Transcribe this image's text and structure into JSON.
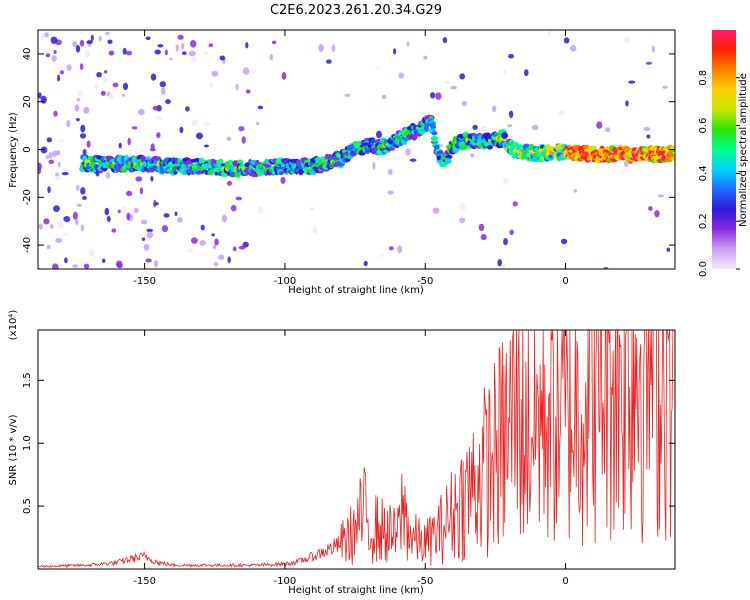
{
  "title": "C2E6.2023.261.20.34.G29",
  "chart_data": [
    {
      "type": "heatmap",
      "xlabel": "Height of straight line (km)",
      "ylabel": "Frequency (Hz)",
      "xlim": [
        -188,
        39
      ],
      "ylim": [
        -50,
        50
      ],
      "xticks": [
        -150,
        -100,
        -50,
        0
      ],
      "xtick_labels": [
        "-150",
        "-100",
        "-50",
        "0"
      ],
      "yticks": [
        -40,
        -20,
        0,
        20,
        40
      ],
      "ytick_labels": [
        "-40",
        "-20",
        "0",
        "20",
        "40"
      ],
      "colorbar": {
        "label": "Normalized spectral amplitude",
        "range": [
          0,
          1
        ],
        "ticks": [
          0.0,
          0.2,
          0.4,
          0.6,
          0.8
        ],
        "tick_labels": [
          "0.0",
          "0.2",
          "0.4",
          "0.6",
          "0.8"
        ],
        "colors": [
          "#f4e8fb",
          "#c9a0f2",
          "#8a2be2",
          "#2a1bd8",
          "#1f6cff",
          "#00d5ff",
          "#00ff8c",
          "#27e600",
          "#c7e600",
          "#ffd000",
          "#ff8000",
          "#ff2000",
          "#ff1a6e"
        ]
      },
      "ridge": {
        "x": [
          -170,
          -160,
          -150,
          -140,
          -130,
          -120,
          -110,
          -100,
          -90,
          -80,
          -75,
          -70,
          -65,
          -60,
          -55,
          -50,
          -48,
          -45,
          -42,
          -40,
          -35,
          -30,
          -25,
          -22,
          -20,
          -15,
          -10,
          -5,
          0,
          10,
          20,
          30,
          38
        ],
        "y": [
          -6,
          -6,
          -6,
          -7,
          -7,
          -8,
          -8,
          -7,
          -7,
          -4,
          0,
          2,
          1,
          4,
          7,
          10,
          12,
          -4,
          -3,
          2,
          4,
          3,
          4,
          5,
          1,
          -1,
          -2,
          -1,
          -1,
          -2,
          -2,
          -2,
          -2
        ]
      },
      "grid": false
    },
    {
      "type": "line",
      "xlabel": "Height of straight line (km)",
      "ylabel": "SNR (10 * v/v)",
      "y_multiplier": "(x10⁴)",
      "xlim": [
        -188,
        39
      ],
      "ylim": [
        0,
        1.9
      ],
      "xticks": [
        -150,
        -100,
        -50,
        0
      ],
      "xtick_labels": [
        "-150",
        "-100",
        "-50",
        "0"
      ],
      "yticks": [
        0.5,
        1.0,
        1.5
      ],
      "ytick_labels": [
        "0.5",
        "1.0",
        "1.5"
      ],
      "series": [
        {
          "color": "#ee2222",
          "x": [
            -188,
            -170,
            -160,
            -155,
            -150,
            -145,
            -140,
            -130,
            -120,
            -110,
            -100,
            -95,
            -90,
            -85,
            -80,
            -75,
            -72,
            -70,
            -65,
            -60,
            -58,
            -55,
            -50,
            -45,
            -40,
            -35,
            -30,
            -25,
            -20,
            -17,
            -15,
            -10,
            -5,
            0,
            5,
            10,
            15,
            20,
            25,
            30,
            35,
            39
          ],
          "y": [
            0.02,
            0.03,
            0.05,
            0.08,
            0.1,
            0.05,
            0.03,
            0.03,
            0.03,
            0.03,
            0.04,
            0.06,
            0.1,
            0.15,
            0.2,
            0.3,
            0.45,
            0.35,
            0.3,
            0.25,
            0.5,
            0.25,
            0.2,
            0.3,
            0.45,
            0.6,
            0.75,
            0.9,
            1.1,
            1.4,
            1.1,
            1.2,
            1.3,
            1.2,
            1.35,
            1.5,
            1.6,
            1.65,
            1.7,
            1.75,
            1.78,
            1.8
          ]
        }
      ],
      "grid": false
    }
  ]
}
